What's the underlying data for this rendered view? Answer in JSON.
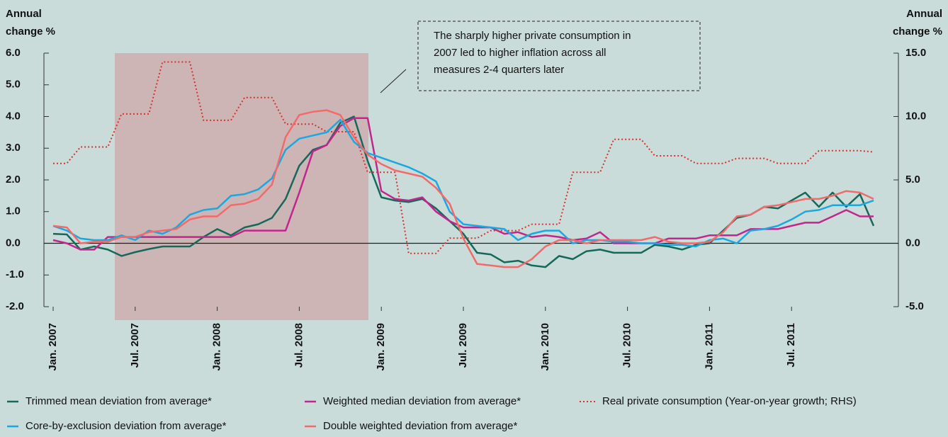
{
  "chart_data": {
    "type": "line",
    "y_label": [
      "Annual",
      "change %"
    ],
    "y2_label": [
      "Annual",
      "change %"
    ],
    "annotation": [
      "The sharply  higher private consumption in",
      "2007 led to higher inflation across all",
      "measures 2-4 quarters later"
    ],
    "categories": [
      "Jan. 2007",
      null,
      null,
      null,
      null,
      null,
      "Jul. 2007",
      null,
      null,
      null,
      null,
      null,
      "Jan. 2008",
      null,
      null,
      null,
      null,
      null,
      "Jul. 2008",
      null,
      null,
      null,
      null,
      null,
      "Jan. 2009",
      null,
      null,
      null,
      null,
      null,
      "Jul. 2009",
      null,
      null,
      null,
      null,
      null,
      "Jan. 2010",
      null,
      null,
      null,
      null,
      null,
      "Jul. 2010",
      null,
      null,
      null,
      null,
      null,
      "Jan. 2011",
      null,
      null,
      null,
      null,
      null,
      "Jul. 2011",
      null,
      null,
      null,
      null,
      null,
      null
    ],
    "ylim": [
      -2,
      6
    ],
    "yticks": [
      {
        "value": 6,
        "label": "6.0"
      },
      {
        "value": 5,
        "label": "5.0"
      },
      {
        "value": 4,
        "label": "4.0"
      },
      {
        "value": 3,
        "label": "3.0"
      },
      {
        "value": 2,
        "label": "2.0"
      },
      {
        "value": 1,
        "label": "1.0"
      },
      {
        "value": 0,
        "label": "0.0"
      },
      {
        "value": -1,
        "label": "-1.0"
      },
      {
        "value": -2,
        "label": "-2.0"
      }
    ],
    "y2lim": [
      -5,
      15
    ],
    "y2ticks": [
      {
        "value": 15,
        "label": "15.0"
      },
      {
        "value": 10,
        "label": "10.0"
      },
      {
        "value": 5,
        "label": "5.0"
      },
      {
        "value": 0,
        "label": "0.0"
      },
      {
        "value": -5,
        "label": "-5.0"
      }
    ],
    "series": [
      {
        "name": "Trimmed mean deviation from average*",
        "color": "#16685a",
        "values": [
          0.3,
          0.28,
          -0.2,
          -0.1,
          -0.2,
          -0.4,
          -0.28,
          -0.18,
          -0.1,
          -0.1,
          -0.1,
          0.2,
          0.45,
          0.25,
          0.5,
          0.6,
          0.8,
          1.4,
          2.45,
          2.95,
          3.1,
          3.8,
          4.0,
          2.6,
          1.45,
          1.35,
          1.3,
          1.4,
          1.1,
          0.7,
          0.3,
          -0.3,
          -0.35,
          -0.6,
          -0.55,
          -0.7,
          -0.75,
          -0.4,
          -0.5,
          -0.25,
          -0.2,
          -0.3,
          -0.3,
          -0.3,
          -0.05,
          -0.1,
          -0.2,
          -0.05,
          0.0,
          0.4,
          0.8,
          0.9,
          1.15,
          1.1,
          1.35,
          1.6,
          1.15,
          1.6,
          1.15,
          1.55,
          0.55
        ]
      },
      {
        "name": "Weighted median deviation from average*",
        "color": "#c2268c",
        "values": [
          0.1,
          0,
          -0.2,
          -0.2,
          0.2,
          0.2,
          0.2,
          0.2,
          0.2,
          0.2,
          0.2,
          0.2,
          0.2,
          0.2,
          0.4,
          0.4,
          0.4,
          0.4,
          1.6,
          2.9,
          3.1,
          3.7,
          3.95,
          3.95,
          1.65,
          1.4,
          1.35,
          1.45,
          1.0,
          0.7,
          0.5,
          0.5,
          0.5,
          0.3,
          0.35,
          0.2,
          0.25,
          0.2,
          0.1,
          0.15,
          0.35,
          0,
          0,
          0,
          0,
          0.15,
          0.15,
          0.15,
          0.25,
          0.25,
          0.25,
          0.45,
          0.45,
          0.45,
          0.55,
          0.65,
          0.65,
          0.85,
          1.05,
          0.85,
          0.85
        ]
      },
      {
        "name": "Real private consumption (Year-on-year growth; RHS)",
        "color": "#d8322f",
        "axis": "y2",
        "dash": "dotted",
        "values": [
          6.3,
          6.3,
          7.6,
          7.6,
          7.6,
          10.2,
          10.2,
          10.2,
          14.3,
          14.3,
          14.3,
          9.7,
          9.7,
          9.7,
          11.5,
          11.5,
          11.5,
          9.4,
          9.4,
          9.4,
          8.8,
          8.8,
          8.8,
          5.6,
          5.6,
          5.6,
          -0.8,
          -0.8,
          -0.8,
          0.4,
          0.4,
          0.4,
          1.0,
          1.0,
          1.0,
          1.5,
          1.5,
          1.5,
          5.6,
          5.6,
          5.6,
          8.2,
          8.2,
          8.2,
          6.9,
          6.9,
          6.9,
          6.3,
          6.3,
          6.3,
          6.7,
          6.7,
          6.7,
          6.3,
          6.3,
          6.3,
          7.3,
          7.3,
          7.3,
          7.3,
          7.2
        ]
      },
      {
        "name": "Core-by-exclusion deviation from average*",
        "color": "#1ba7e0",
        "values": [
          0.55,
          0.4,
          0.15,
          0.1,
          0.1,
          0.25,
          0.1,
          0.4,
          0.3,
          0.5,
          0.9,
          1.05,
          1.1,
          1.5,
          1.55,
          1.7,
          2.05,
          2.95,
          3.3,
          3.4,
          3.5,
          3.9,
          3.2,
          2.85,
          2.7,
          2.55,
          2.4,
          2.2,
          1.95,
          1.0,
          0.6,
          0.55,
          0.5,
          0.45,
          0.1,
          0.3,
          0.4,
          0.4,
          0.0,
          0.1,
          0.1,
          0.05,
          0.05,
          0.0,
          0.0,
          -0.05,
          -0.05,
          -0.1,
          0.1,
          0.15,
          0.0,
          0.4,
          0.45,
          0.55,
          0.75,
          1.0,
          1.05,
          1.2,
          1.2,
          1.2,
          1.35
        ]
      },
      {
        "name": "Double weighted deviation from average*",
        "color": "#f26a6a",
        "values": [
          0.55,
          0.5,
          0.0,
          0.05,
          0.05,
          0.2,
          0.2,
          0.35,
          0.4,
          0.45,
          0.75,
          0.85,
          0.85,
          1.2,
          1.25,
          1.4,
          1.85,
          3.35,
          4.05,
          4.15,
          4.2,
          4.05,
          3.35,
          2.8,
          2.5,
          2.3,
          2.2,
          2.1,
          1.75,
          1.25,
          0.15,
          -0.65,
          -0.7,
          -0.75,
          -0.75,
          -0.5,
          -0.1,
          0.1,
          0.1,
          0.0,
          0.1,
          0.1,
          0.1,
          0.1,
          0.2,
          0.05,
          0.0,
          0.0,
          0.05,
          0.35,
          0.85,
          0.9,
          1.15,
          1.2,
          1.3,
          1.4,
          1.4,
          1.5,
          1.65,
          1.6,
          1.4
        ]
      }
    ]
  }
}
